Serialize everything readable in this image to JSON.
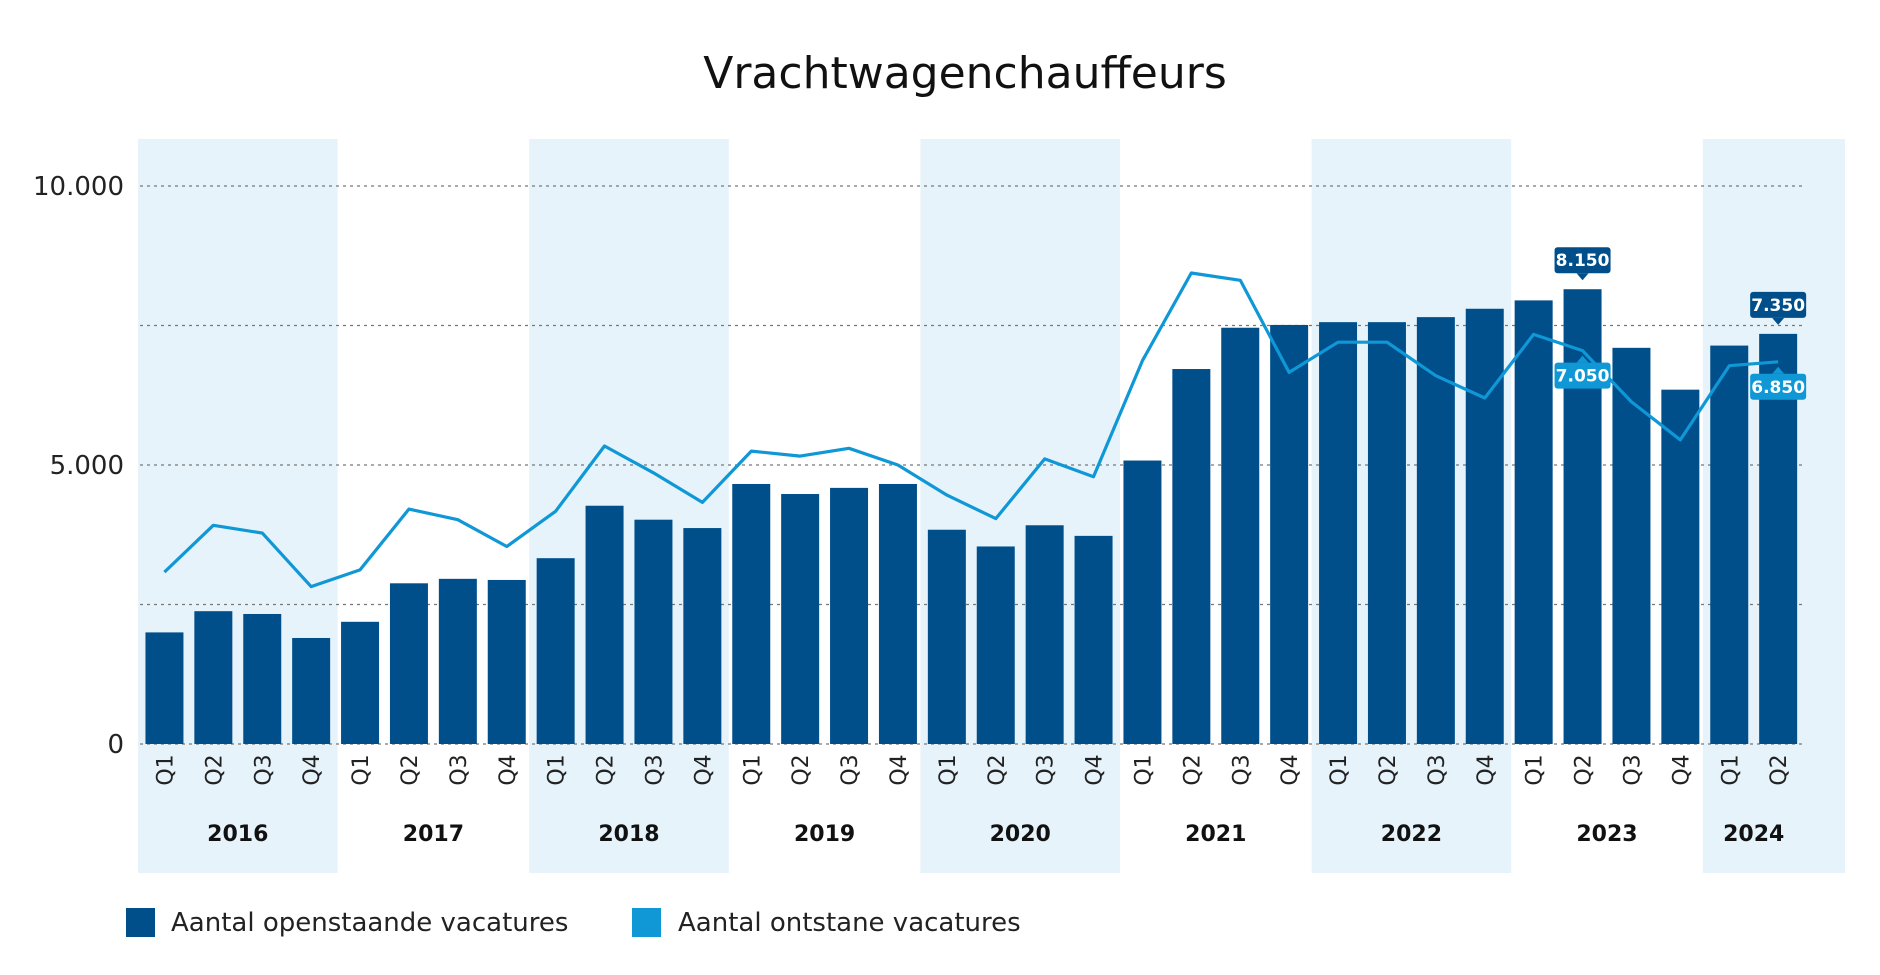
{
  "chart_data": {
    "type": "bar",
    "title": "Vrachtwagenchauffeurs",
    "xlabel": "",
    "ylabel": "",
    "ylim": [
      0,
      10000
    ],
    "y_ticks": [
      {
        "value": 0,
        "label": "0"
      },
      {
        "value": 5000,
        "label": "5.000"
      },
      {
        "value": 10000,
        "label": "10.000"
      }
    ],
    "gridlines": [
      0,
      2500,
      5000,
      7500,
      10000
    ],
    "grid": true,
    "legend_position": "bottom-left",
    "categories": [
      "Q1",
      "Q2",
      "Q3",
      "Q4",
      "Q1",
      "Q2",
      "Q3",
      "Q4",
      "Q1",
      "Q2",
      "Q3",
      "Q4",
      "Q1",
      "Q2",
      "Q3",
      "Q4",
      "Q1",
      "Q2",
      "Q3",
      "Q4",
      "Q1",
      "Q2",
      "Q3",
      "Q4",
      "Q1",
      "Q2",
      "Q3",
      "Q4",
      "Q1",
      "Q2",
      "Q3",
      "Q4",
      "Q1",
      "Q2"
    ],
    "years": [
      {
        "label": "2016",
        "start": 0,
        "end": 3,
        "shaded": true
      },
      {
        "label": "2017",
        "start": 4,
        "end": 7,
        "shaded": false
      },
      {
        "label": "2018",
        "start": 8,
        "end": 11,
        "shaded": true
      },
      {
        "label": "2019",
        "start": 12,
        "end": 15,
        "shaded": false
      },
      {
        "label": "2020",
        "start": 16,
        "end": 19,
        "shaded": true
      },
      {
        "label": "2021",
        "start": 20,
        "end": 23,
        "shaded": false
      },
      {
        "label": "2022",
        "start": 24,
        "end": 27,
        "shaded": true
      },
      {
        "label": "2023",
        "start": 28,
        "end": 31,
        "shaded": false
      },
      {
        "label": "2024",
        "start": 32,
        "end": 33,
        "shaded": true
      }
    ],
    "series": [
      {
        "name": "Aantal openstaande vacatures",
        "kind": "bar",
        "color": "#004f8b",
        "values": [
          2000,
          2380,
          2330,
          1900,
          2190,
          2880,
          2960,
          2940,
          3330,
          4270,
          4020,
          3870,
          4660,
          4480,
          4590,
          4660,
          3840,
          3540,
          3920,
          3730,
          5080,
          6720,
          7460,
          7510,
          7560,
          7560,
          7650,
          7800,
          7950,
          8150,
          7100,
          6350,
          7140,
          7350
        ]
      },
      {
        "name": "Aantal ontstane vacatures",
        "kind": "line",
        "color": "#0f97d6",
        "values": [
          3080,
          3920,
          3780,
          2820,
          3120,
          4210,
          4020,
          3540,
          4170,
          5340,
          4860,
          4330,
          5250,
          5160,
          5300,
          5000,
          4460,
          4040,
          5110,
          4790,
          6870,
          8440,
          8310,
          6660,
          7200,
          7200,
          6600,
          6200,
          7340,
          7050,
          6130,
          5450,
          6780,
          6850
        ]
      }
    ],
    "annotations": [
      {
        "series": 0,
        "index": 29,
        "label": "8.150",
        "color": "#004f8b"
      },
      {
        "series": 0,
        "index": 33,
        "label": "7.350",
        "color": "#004f8b"
      },
      {
        "series": 1,
        "index": 29,
        "label": "7.050",
        "color": "#0f97d6"
      },
      {
        "series": 1,
        "index": 33,
        "label": "6.850",
        "color": "#0f97d6"
      }
    ],
    "band_color": "#e6f3fb",
    "grid_color": "#777777"
  }
}
